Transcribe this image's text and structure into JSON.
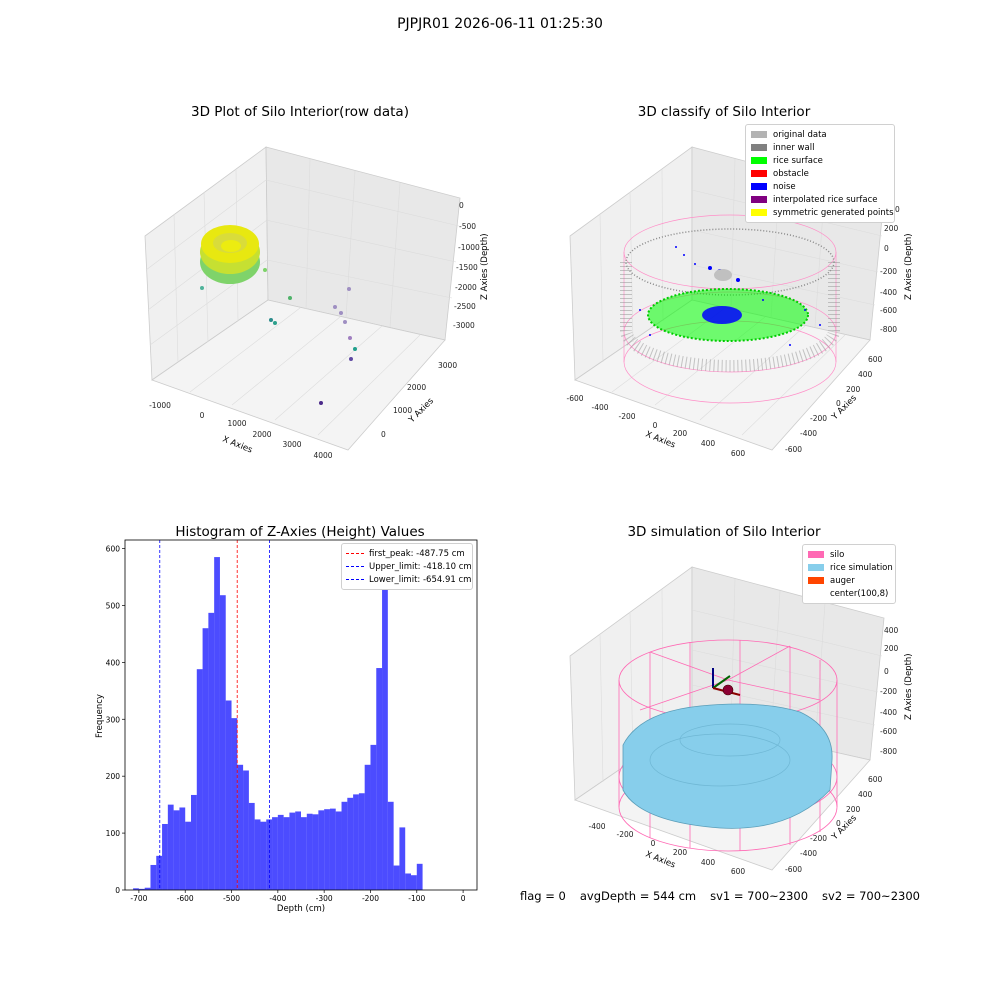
{
  "suptitle": "PJPJR01 2026-06-11 01:25:30",
  "panels": {
    "raw": {
      "title": "3D Plot of Silo Interior(row data)",
      "xlabel": "X Axies",
      "ylabel": "Y Axies",
      "zlabel": "Z Axies (Depth)",
      "xticks": [
        "-1000",
        "0",
        "1000",
        "2000",
        "3000",
        "4000"
      ],
      "yticks": [
        "0",
        "1000",
        "2000",
        "3000"
      ],
      "zticks": [
        "0",
        "-500",
        "-1000",
        "-1500",
        "-2000",
        "-2500",
        "-3000"
      ]
    },
    "classify": {
      "title": "3D classify of Silo Interior",
      "xlabel": "X Axies",
      "ylabel": "Y Axies",
      "zlabel": "Z Axies (Depth)",
      "xticks": [
        "-600",
        "-400",
        "-200",
        "0",
        "200",
        "400",
        "600"
      ],
      "yticks": [
        "600",
        "400",
        "200",
        "0",
        "-200",
        "-400",
        "-600"
      ],
      "zticks": [
        "200",
        "0",
        "-200",
        "-400",
        "-600",
        "-800"
      ],
      "zticks_partial": "0",
      "legend": [
        {
          "label": "original data",
          "color": "#b3b3b3"
        },
        {
          "label": "inner wall",
          "color": "#808080"
        },
        {
          "label": "rice surface",
          "color": "#00ff00"
        },
        {
          "label": "obstacle",
          "color": "#ff0000"
        },
        {
          "label": "noise",
          "color": "#0000ff"
        },
        {
          "label": "interpolated rice surface",
          "color": "#800080"
        },
        {
          "label": "symmetric generated points",
          "color": "#ffff00"
        }
      ]
    },
    "simulation": {
      "title": "3D simulation of Silo Interior",
      "xlabel": "X Axies",
      "ylabel": "Y Axies",
      "zlabel": "Z Axies (Depth)",
      "xticks": [
        "-400",
        "-200",
        "0",
        "200",
        "400",
        "600"
      ],
      "yticks": [
        "600",
        "400",
        "200",
        "0",
        "-200",
        "-400",
        "-600"
      ],
      "zticks": [
        "400",
        "200",
        "0",
        "-200",
        "-400",
        "-600",
        "-800"
      ],
      "legend": [
        {
          "label": "silo",
          "color": "#ff69b4"
        },
        {
          "label": "rice simulation",
          "color": "#87ceeb"
        },
        {
          "label": "auger",
          "color": "#ff4500"
        },
        {
          "label": "center(100,8)",
          "color": ""
        }
      ]
    }
  },
  "chart_data": [
    {
      "type": "bar",
      "title": "Histogram of Z-Axies (Height) Values",
      "xlabel": "Depth (cm)",
      "ylabel": "Frequency",
      "xlim": [
        -730,
        30
      ],
      "ylim": [
        0,
        615
      ],
      "xticks": [
        -700,
        -600,
        -500,
        -400,
        -300,
        -200,
        -100,
        0
      ],
      "yticks": [
        0,
        100,
        200,
        300,
        400,
        500,
        600
      ],
      "bin_width": 12.5,
      "bin_start": -712.5,
      "values": [
        3,
        2,
        4,
        44,
        60,
        116,
        150,
        140,
        145,
        120,
        167,
        388,
        460,
        487,
        585,
        518,
        333,
        302,
        220,
        210,
        153,
        124,
        120,
        124,
        128,
        132,
        128,
        136,
        138,
        128,
        134,
        133,
        140,
        142,
        143,
        138,
        155,
        162,
        168,
        170,
        220,
        255,
        390,
        570,
        155,
        43,
        110,
        29,
        26,
        46
      ],
      "bar_color": "#0000ff",
      "bar_alpha": 0.7,
      "vlines": [
        {
          "x": -487.75,
          "color": "#ff0000",
          "label": "first_peak: -487.75 cm"
        },
        {
          "x": -418.1,
          "color": "#0000ff",
          "label": "Upper_limit: -418.10 cm"
        },
        {
          "x": -654.91,
          "color": "#0000ff",
          "label": "Lower_limit: -654.91 cm"
        }
      ],
      "legend_position": "top-right",
      "grid": false
    }
  ],
  "status": {
    "flag": "flag = 0",
    "avg": "avgDepth = 544 cm",
    "sv1": "sv1 = 700~2300",
    "sv2": "sv2 = 700~2300"
  }
}
